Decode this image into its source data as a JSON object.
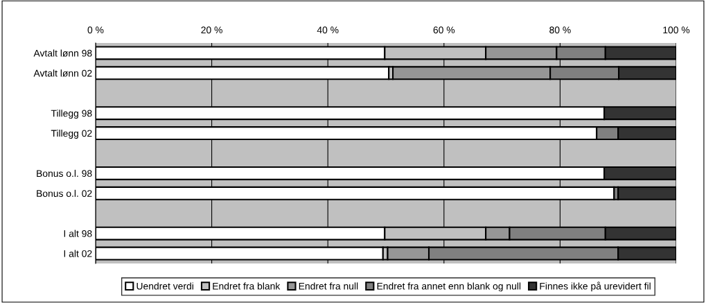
{
  "chart_data": {
    "type": "bar",
    "orientation": "horizontal",
    "stacked": true,
    "categories": [
      "Avtalt lønn 98",
      "Avtalt lønn 02",
      null,
      "Tillegg 98",
      "Tillegg 02",
      null,
      "Bonus o.l. 98",
      "Bonus o.l. 02",
      null,
      "I alt 98",
      "I alt 02"
    ],
    "series": [
      {
        "name": "Uendret verdi",
        "color": "#ffffff",
        "values": [
          49.8,
          50.5,
          null,
          87.6,
          86.3,
          null,
          87.6,
          89.3,
          null,
          49.8,
          49.5
        ]
      },
      {
        "name": "Endret fra blank",
        "color": "#c0c0c0",
        "values": [
          17.4,
          0.7,
          null,
          0,
          0,
          null,
          0,
          0,
          null,
          17.4,
          0.8
        ]
      },
      {
        "name": "Endret fra null",
        "color": "#969696",
        "values": [
          12.2,
          27.1,
          null,
          0,
          0,
          null,
          0,
          0,
          null,
          4.1,
          7.1
        ]
      },
      {
        "name": "Endret fra annet enn blank og null",
        "color": "#808080",
        "values": [
          8.4,
          11.8,
          null,
          0,
          3.7,
          null,
          0,
          0.7,
          null,
          16.5,
          32.6
        ]
      },
      {
        "name": "Finnes ikke på urevidert fil",
        "color": "#333333",
        "values": [
          12.2,
          9.9,
          null,
          12.4,
          10.0,
          null,
          12.4,
          10.0,
          null,
          12.2,
          10.0
        ]
      }
    ],
    "xlim": [
      0,
      100
    ],
    "xticks": [
      {
        "value": 0,
        "label": "0 %"
      },
      {
        "value": 20,
        "label": "20 %"
      },
      {
        "value": 40,
        "label": "40 %"
      },
      {
        "value": 60,
        "label": "60 %"
      },
      {
        "value": 80,
        "label": "80 %"
      },
      {
        "value": 100,
        "label": "100 %"
      }
    ],
    "grid": "x",
    "legend": "bottom"
  }
}
